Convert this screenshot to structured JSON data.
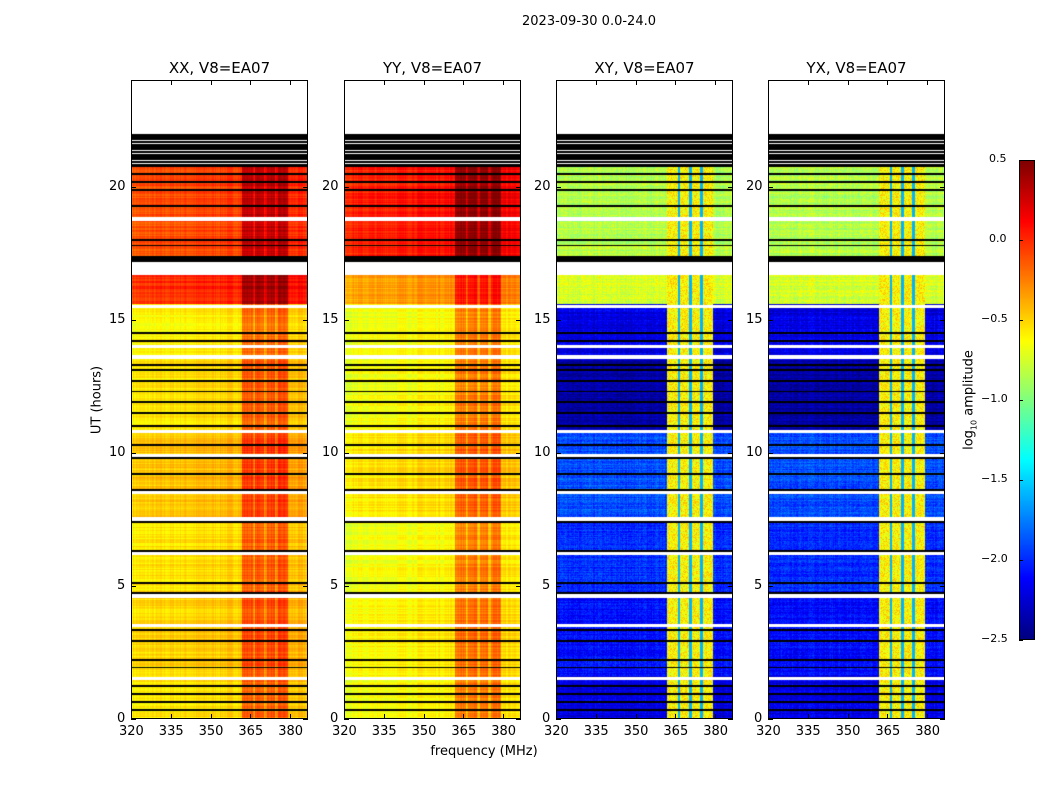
{
  "chart_data": {
    "type": "heatmap",
    "title": "2023-09-30 0.0-24.0",
    "xlabel": "frequency (MHz)",
    "ylabel": "UT (hours)",
    "xlim": [
      320,
      386.7
    ],
    "ylim": [
      0,
      24
    ],
    "xticks": [
      "320",
      "335",
      "350",
      "365",
      "380"
    ],
    "xtick_values": [
      320,
      335,
      350,
      365,
      380
    ],
    "yticks": [
      "0",
      "5",
      "10",
      "15",
      "20"
    ],
    "ytick_values": [
      0,
      5,
      10,
      15,
      20
    ],
    "panels": [
      {
        "title": "XX, V8=EA07",
        "key": "XX"
      },
      {
        "title": "YY, V8=EA07",
        "key": "YY"
      },
      {
        "title": "XY, V8=EA07",
        "key": "XY"
      },
      {
        "title": "YX, V8=EA07",
        "key": "YX"
      }
    ],
    "colorbar": {
      "label_prefix": "log",
      "label_sub": "10",
      "label_suffix": " amplitude",
      "clim": [
        -2.5,
        0.5
      ],
      "ticks": [
        "0.5",
        "0.0",
        "−0.5",
        "−1.0",
        "−1.5",
        "−2.0",
        "−2.5"
      ],
      "tick_values": [
        0.5,
        0.0,
        -0.5,
        -1.0,
        -1.5,
        -2.0,
        -2.5
      ],
      "colormap": "jet"
    },
    "time_segments_log10_amplitude": [
      {
        "t0": 0.0,
        "t1": 1.6,
        "XX": -0.45,
        "YY": -0.55,
        "XY": -2.2,
        "YX": -2.2
      },
      {
        "t0": 1.6,
        "t1": 4.8,
        "XX": -0.4,
        "YY": -0.5,
        "XY": -2.1,
        "YX": -2.1
      },
      {
        "t0": 4.8,
        "t1": 7.5,
        "XX": -0.45,
        "YY": -0.55,
        "XY": -2.0,
        "YX": -2.0
      },
      {
        "t0": 7.5,
        "t1": 10.8,
        "XX": -0.35,
        "YY": -0.45,
        "XY": -1.9,
        "YX": -1.9
      },
      {
        "t0": 10.8,
        "t1": 13.5,
        "XX": -0.45,
        "YY": -0.55,
        "XY": -2.4,
        "YX": -2.4
      },
      {
        "t0": 13.5,
        "t1": 15.6,
        "XX": -0.5,
        "YY": -0.55,
        "XY": -2.2,
        "YX": -2.2
      },
      {
        "t0": 15.6,
        "t1": 16.7,
        "XX": 0.1,
        "YY": -0.25,
        "XY": -0.75,
        "YX": -0.75
      },
      {
        "t0": 17.4,
        "t1": 20.8,
        "XX": 0.0,
        "YY": 0.15,
        "XY": -0.85,
        "YX": -0.85
      }
    ],
    "rfi_bands_MHz": [
      [
        362,
        366
      ],
      [
        367,
        370.5
      ],
      [
        371.5,
        374.5
      ],
      [
        375.5,
        379.5
      ]
    ],
    "rfi_boost_parallel": 0.35,
    "rfi_level_cross": -0.6,
    "flagged_hours": [
      0.3,
      0.6,
      0.9,
      1.2,
      1.9,
      2.2,
      2.9,
      3.3,
      4.7,
      5.1,
      6.3,
      7.4,
      8.6,
      9.2,
      9.8,
      10.3,
      11.0,
      11.5,
      11.9,
      12.3,
      12.7,
      13.1,
      13.3,
      14.2,
      14.5,
      17.2,
      17.3,
      17.8,
      18.0,
      19.3,
      19.9,
      20.2,
      20.5,
      20.8
    ],
    "flagged_block_hours": [
      20.8,
      22.0
    ],
    "gap_hours": [
      1.5,
      3.5,
      4.6,
      6.2,
      7.5,
      8.5,
      9.9,
      10.8,
      13.6,
      14.0,
      15.5,
      17.0,
      18.8
    ],
    "no_data_after_hour": 22.0
  }
}
